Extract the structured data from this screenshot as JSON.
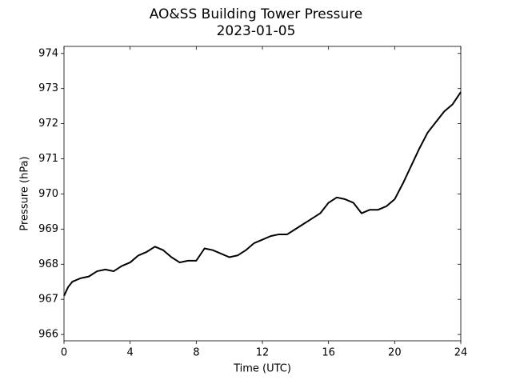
{
  "chart_data": {
    "type": "line",
    "title": [
      "AO&SS Building Tower Pressure",
      "2023-01-05"
    ],
    "x_label": "Time (UTC)",
    "y_label": "Pressure (hPa)",
    "x": [
      0,
      0.25,
      0.5,
      1,
      1.5,
      2,
      2.5,
      3,
      3.5,
      4,
      4.5,
      5,
      5.5,
      6,
      6.5,
      7,
      7.5,
      8,
      8.5,
      9,
      9.5,
      10,
      10.5,
      11,
      11.5,
      12,
      12.5,
      13,
      13.5,
      14,
      14.5,
      15,
      15.5,
      16,
      16.5,
      17,
      17.5,
      18,
      18.5,
      19,
      19.5,
      20,
      20.5,
      21,
      21.5,
      22,
      22.5,
      23,
      23.5,
      24
    ],
    "values": [
      967.1,
      967.35,
      967.5,
      967.6,
      967.65,
      967.8,
      967.85,
      967.8,
      967.95,
      968.05,
      968.25,
      968.35,
      968.5,
      968.4,
      968.2,
      968.05,
      968.1,
      968.1,
      968.45,
      968.4,
      968.3,
      968.2,
      968.25,
      968.4,
      968.6,
      968.7,
      968.8,
      968.85,
      968.85,
      969.0,
      969.15,
      969.3,
      969.45,
      969.75,
      969.9,
      969.85,
      969.75,
      969.45,
      969.55,
      969.55,
      969.65,
      969.85,
      970.3,
      970.8,
      971.3,
      971.75,
      972.05,
      972.35,
      972.55,
      972.9
    ],
    "color": "#000000",
    "xlim": [
      0,
      24
    ],
    "xticks": [
      0,
      4,
      8,
      12,
      16,
      20,
      24
    ],
    "ylim": [
      965.82,
      974.2
    ],
    "yticks": [
      966,
      967,
      968,
      969,
      970,
      971,
      972,
      973,
      974
    ]
  }
}
